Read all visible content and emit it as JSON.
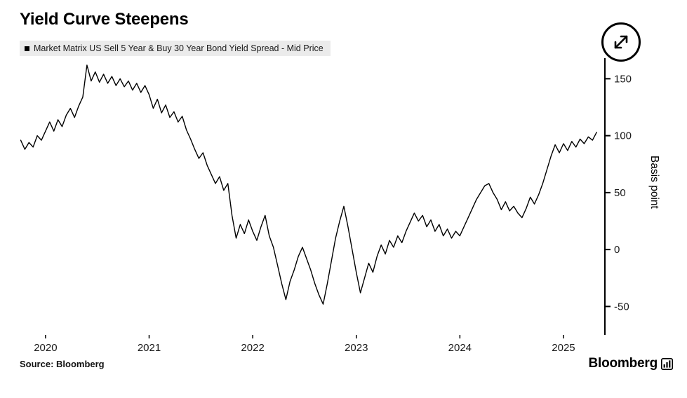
{
  "title": "Yield Curve Steepens",
  "legend": {
    "marker": "■",
    "label": "Market Matrix US Sell 5 Year & Buy 30 Year Bond Yield Spread - Mid Price"
  },
  "source": "Source: Bloomberg",
  "brand": "Bloomberg",
  "icons": {
    "expand": "diagonal-double-arrow",
    "legend_marker": "black-square",
    "logo_mark": "bar-chart-glyph"
  },
  "colors": {
    "line": "#000000",
    "axis": "#000000",
    "legend_bg": "#ebebeb",
    "background": "#ffffff",
    "tick_text": "#1a1a1a"
  },
  "chart_data": {
    "type": "line",
    "title": "Yield Curve Steepens",
    "series_name": "Market Matrix US Sell 5 Year & Buy 30 Year Bond Yield Spread - Mid Price",
    "xlabel": "",
    "ylabel": "Basis point",
    "legend_position": "top-left",
    "grid": false,
    "x_ticks": [
      2020,
      2021,
      2022,
      2023,
      2024,
      2025
    ],
    "y_ticks": [
      -50,
      0,
      50,
      100,
      150
    ],
    "xlim": [
      2019.75,
      2025.4
    ],
    "ylim": [
      -75,
      165
    ],
    "x_start": 2019.76,
    "x_step": 0.04,
    "y": [
      96,
      88,
      94,
      90,
      100,
      96,
      104,
      112,
      104,
      114,
      108,
      118,
      124,
      116,
      126,
      134,
      162,
      148,
      156,
      147,
      154,
      146,
      152,
      144,
      150,
      143,
      148,
      140,
      146,
      138,
      144,
      136,
      124,
      132,
      120,
      127,
      116,
      121,
      112,
      117,
      105,
      97,
      88,
      80,
      85,
      74,
      66,
      58,
      64,
      52,
      58,
      30,
      10,
      22,
      14,
      26,
      16,
      8,
      20,
      30,
      12,
      2,
      -14,
      -30,
      -44,
      -28,
      -18,
      -6,
      2,
      -8,
      -18,
      -30,
      -40,
      -48,
      -30,
      -10,
      10,
      25,
      38,
      20,
      0,
      -20,
      -38,
      -25,
      -12,
      -20,
      -6,
      4,
      -4,
      8,
      2,
      12,
      6,
      16,
      24,
      32,
      25,
      30,
      20,
      26,
      16,
      22,
      12,
      18,
      10,
      16,
      12,
      20,
      28,
      36,
      44,
      50,
      56,
      58,
      50,
      44,
      35,
      42,
      34,
      38,
      32,
      28,
      36,
      46,
      40,
      48,
      58,
      70,
      82,
      92,
      85,
      93,
      87,
      95,
      90,
      97,
      93,
      99,
      96,
      103
    ]
  }
}
